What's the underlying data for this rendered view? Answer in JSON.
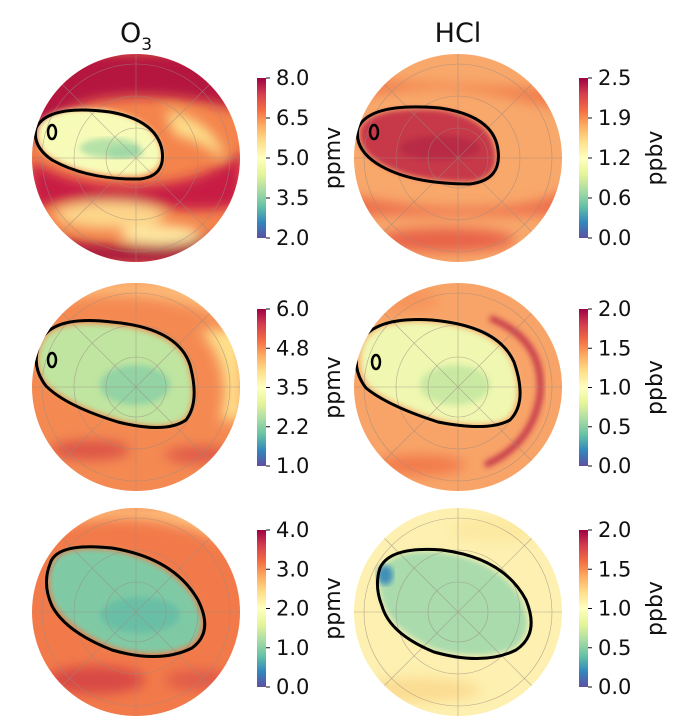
{
  "chart_data": {
    "type": "heatmap",
    "columns": [
      {
        "title_main": "O",
        "title_sub": "3"
      },
      {
        "title_main": "HCl",
        "title_sub": ""
      }
    ],
    "panels": [
      {
        "row": 0,
        "col": 0,
        "variable": "O3",
        "unit": "ppmv",
        "colorbar": {
          "ticks": [
            "8.0",
            "6.5",
            "5.0",
            "3.5",
            "2.0"
          ],
          "range": [
            2.0,
            8.0
          ]
        }
      },
      {
        "row": 0,
        "col": 1,
        "variable": "HCl",
        "unit": "ppbv",
        "colorbar": {
          "ticks": [
            "2.5",
            "1.9",
            "1.2",
            "0.6",
            "0.0"
          ],
          "range": [
            0.0,
            2.5
          ]
        }
      },
      {
        "row": 1,
        "col": 0,
        "variable": "O3",
        "unit": "ppmv",
        "colorbar": {
          "ticks": [
            "6.0",
            "4.8",
            "3.5",
            "2.2",
            "1.0"
          ],
          "range": [
            1.0,
            6.0
          ]
        }
      },
      {
        "row": 1,
        "col": 1,
        "variable": "HCl",
        "unit": "ppbv",
        "colorbar": {
          "ticks": [
            "2.0",
            "1.5",
            "1.0",
            "0.5",
            "0.0"
          ],
          "range": [
            0.0,
            2.0
          ]
        }
      },
      {
        "row": 2,
        "col": 0,
        "variable": "O3",
        "unit": "ppmv",
        "colorbar": {
          "ticks": [
            "4.0",
            "3.0",
            "2.0",
            "1.0",
            "0.0"
          ],
          "range": [
            0.0,
            4.0
          ]
        }
      },
      {
        "row": 2,
        "col": 1,
        "variable": "HCl",
        "unit": "ppbv",
        "colorbar": {
          "ticks": [
            "2.0",
            "1.5",
            "1.0",
            "0.5",
            "0.0"
          ],
          "range": [
            0.0,
            2.0
          ]
        }
      }
    ],
    "colormap": [
      "#5e4fa2",
      "#3288bd",
      "#66c2a5",
      "#abdda4",
      "#e6f598",
      "#ffffbf",
      "#fee08b",
      "#fdae61",
      "#f46d43",
      "#d53e4f",
      "#9e0142"
    ],
    "projection": "south-polar stereographic",
    "contour_color": "#000000"
  }
}
